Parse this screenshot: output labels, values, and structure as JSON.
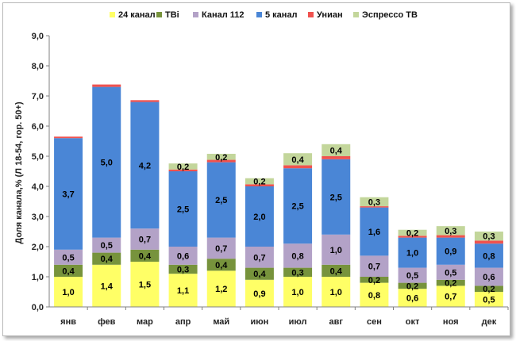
{
  "chart_data": {
    "type": "stacked-bar",
    "categories": [
      "янв",
      "фев",
      "мар",
      "апр",
      "май",
      "июн",
      "июл",
      "авг",
      "сен",
      "окт",
      "ноя",
      "дек"
    ],
    "ylabel": "Доля канала,% (Л 18-54, гор. 50+)",
    "ylim": [
      0,
      9
    ],
    "yticks": [
      "0,0",
      "1,0",
      "2,0",
      "3,0",
      "4,0",
      "5,0",
      "6,0",
      "7,0",
      "8,0",
      "9,0"
    ],
    "legend_position": "top",
    "series": [
      {
        "name": "24 канал",
        "color": "#ffff66",
        "values": [
          1.0,
          1.4,
          1.5,
          1.1,
          1.2,
          0.9,
          1.0,
          1.0,
          0.8,
          0.6,
          0.7,
          0.5
        ],
        "labels": [
          "1,0",
          "1,4",
          "1,5",
          "1,1",
          "1,2",
          "0,9",
          "1,0",
          "1,0",
          "0,8",
          "0,6",
          "0,7",
          "0,5"
        ]
      },
      {
        "name": "ТВі",
        "color": "#77933c",
        "values": [
          0.4,
          0.4,
          0.4,
          0.3,
          0.4,
          0.4,
          0.3,
          0.4,
          0.2,
          0.2,
          0.2,
          0.2
        ],
        "labels": [
          "0,4",
          "0,4",
          "0,4",
          "0,3",
          "0,4",
          "0,4",
          "0,3",
          "0,4",
          "0,2",
          "0,2",
          "0,2",
          "0,2"
        ]
      },
      {
        "name": "Канал 112",
        "color": "#b3a2c7",
        "values": [
          0.5,
          0.5,
          0.7,
          0.6,
          0.7,
          0.7,
          0.8,
          1.0,
          0.7,
          0.5,
          0.5,
          0.6
        ],
        "labels": [
          "0,5",
          "0,5",
          "0,7",
          "0,6",
          "0,7",
          "0,7",
          "0,8",
          "1,0",
          "0,7",
          "0,5",
          "0,5",
          "0,6"
        ]
      },
      {
        "name": "5 канал",
        "color": "#4a86d6",
        "values": [
          3.7,
          5.0,
          4.2,
          2.5,
          2.5,
          2.0,
          2.5,
          2.5,
          1.6,
          1.0,
          0.9,
          0.8
        ],
        "labels": [
          "3,7",
          "5,0",
          "4,2",
          "2,5",
          "2,5",
          "2,0",
          "2,5",
          "2,5",
          "1,6",
          "1,0",
          "0,9",
          "0,8"
        ]
      },
      {
        "name": "Униан",
        "color": "#f0524f",
        "values": [
          0.05,
          0.08,
          0.06,
          0.06,
          0.08,
          0.07,
          0.1,
          0.1,
          0.04,
          0.06,
          0.08,
          0.1
        ],
        "labels": [
          "",
          "",
          "",
          "",
          "",
          "",
          "",
          "",
          "",
          "",
          "",
          ""
        ]
      },
      {
        "name": "Эспрессо ТВ",
        "color": "#c3d69b",
        "values": [
          0,
          0,
          0,
          0.2,
          0.2,
          0.2,
          0.4,
          0.4,
          0.3,
          0.2,
          0.3,
          0.3
        ],
        "labels": [
          "",
          "",
          "",
          "0,2",
          "0,2",
          "0,2",
          "0,4",
          "0,4",
          "0,3",
          "0,2",
          "0,3",
          "0,3"
        ]
      }
    ]
  }
}
